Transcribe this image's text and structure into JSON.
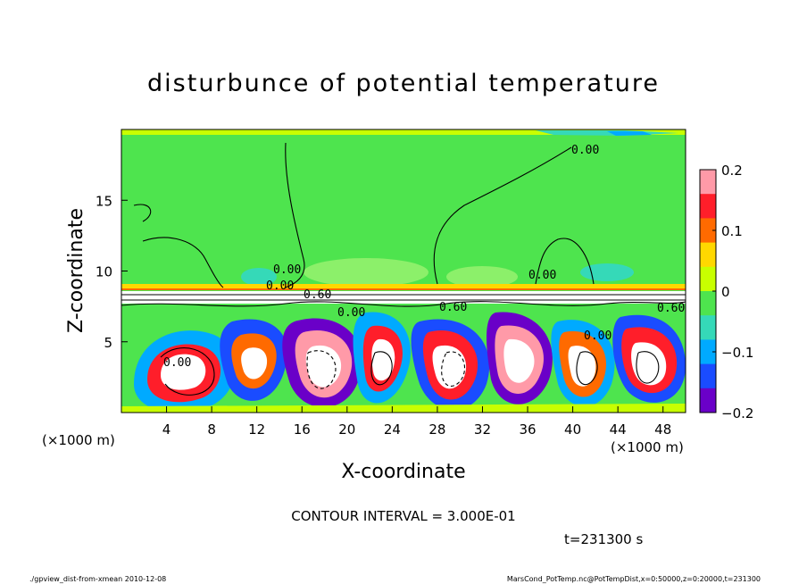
{
  "chart_data": {
    "type": "heatmap",
    "title": "disturbunce of potential temperature",
    "xlabel": "X-coordinate",
    "ylabel": "Z-coordinate",
    "x_unit": "(×1000 m)",
    "y_unit": "(×1000 m)",
    "xlim": [
      0,
      50
    ],
    "ylim": [
      0,
      20
    ],
    "x_ticks": [
      4,
      8,
      12,
      16,
      20,
      24,
      28,
      32,
      36,
      40,
      44,
      48
    ],
    "y_ticks": [
      5,
      10,
      15
    ],
    "colorbar": {
      "range": [
        -0.2,
        0.2
      ],
      "tick_values": [
        0.2,
        0.1,
        0,
        -0.1,
        -0.2
      ],
      "tick_labels": [
        "0.2",
        "0.1",
        "0",
        "−0.1",
        "−0.2"
      ],
      "colors": [
        "#ff9aa8",
        "#ff1e2a",
        "#ff6a00",
        "#ffd800",
        "#c8ff00",
        "#4ee44e",
        "#35d9b8",
        "#00aaff",
        "#1a4cff",
        "#6a00c8"
      ]
    },
    "contour_labels": [
      "0.00",
      "0.00",
      "0.00",
      "0.60",
      "0.00",
      "0.60",
      "0.00",
      "0.60",
      "0.00",
      "0.00"
    ],
    "contour_interval_text": "CONTOUR INTERVAL = 3.000E-01",
    "time_text": "t=231300 s"
  },
  "footer": {
    "left": "./gpview_dist-from-xmean  2010-12-08",
    "right": "MarsCond_PotTemp.nc@PotTempDist,x=0:50000,z=0:20000,t=231300"
  }
}
